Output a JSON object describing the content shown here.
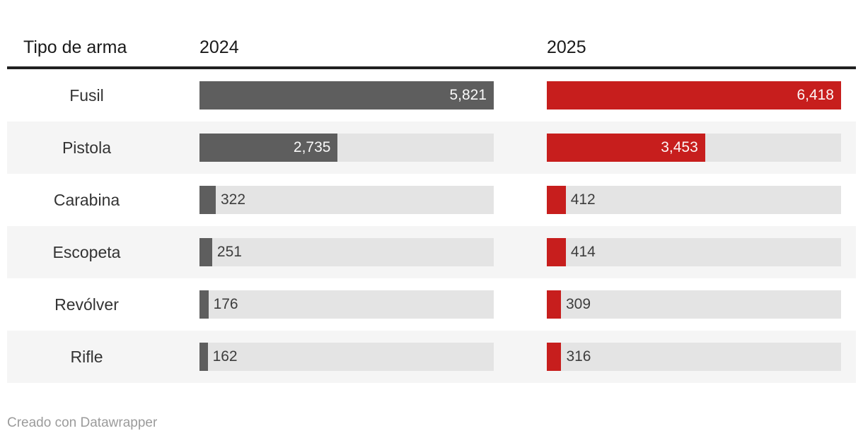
{
  "table": {
    "columns": [
      "Tipo de arma",
      "2024",
      "2025"
    ]
  },
  "footer": {
    "credit": "Creado con Datawrapper"
  },
  "colors": {
    "bar_2024": "#5e5e5e",
    "bar_2025": "#c71e1d",
    "bar_track": "#e4e4e4",
    "row_stripe": "#f5f5f5",
    "header_rule": "#212121",
    "value_outside_text": "#3d3d3d",
    "value_inside_text": "#ffffff",
    "credit_text": "#9b9b9b"
  },
  "chart_data": {
    "type": "bar",
    "title": "",
    "xlabel": "",
    "ylabel": "",
    "categories": [
      "Fusil",
      "Pistola",
      "Carabina",
      "Escopeta",
      "Revólver",
      "Rifle"
    ],
    "series": [
      {
        "name": "2024",
        "color": "#5e5e5e",
        "values": [
          5821,
          2735,
          322,
          251,
          176,
          162
        ],
        "labels": [
          "5,821",
          "2,735",
          "322",
          "251",
          "176",
          "162"
        ],
        "scale_max": 5821
      },
      {
        "name": "2025",
        "color": "#c71e1d",
        "values": [
          6418,
          3453,
          412,
          414,
          309,
          316
        ],
        "labels": [
          "6,418",
          "3,453",
          "412",
          "414",
          "309",
          "316"
        ],
        "scale_max": 6418
      }
    ],
    "layout": {
      "orientation": "horizontal",
      "bar_scaling": "each column scaled independently from 0 to column max",
      "value_labels": "inside bar (white, right-aligned) for large bars; outside right of bar (dark) for small bars",
      "zebra_striping": true,
      "grid": false,
      "legend_position": "column headers"
    }
  }
}
